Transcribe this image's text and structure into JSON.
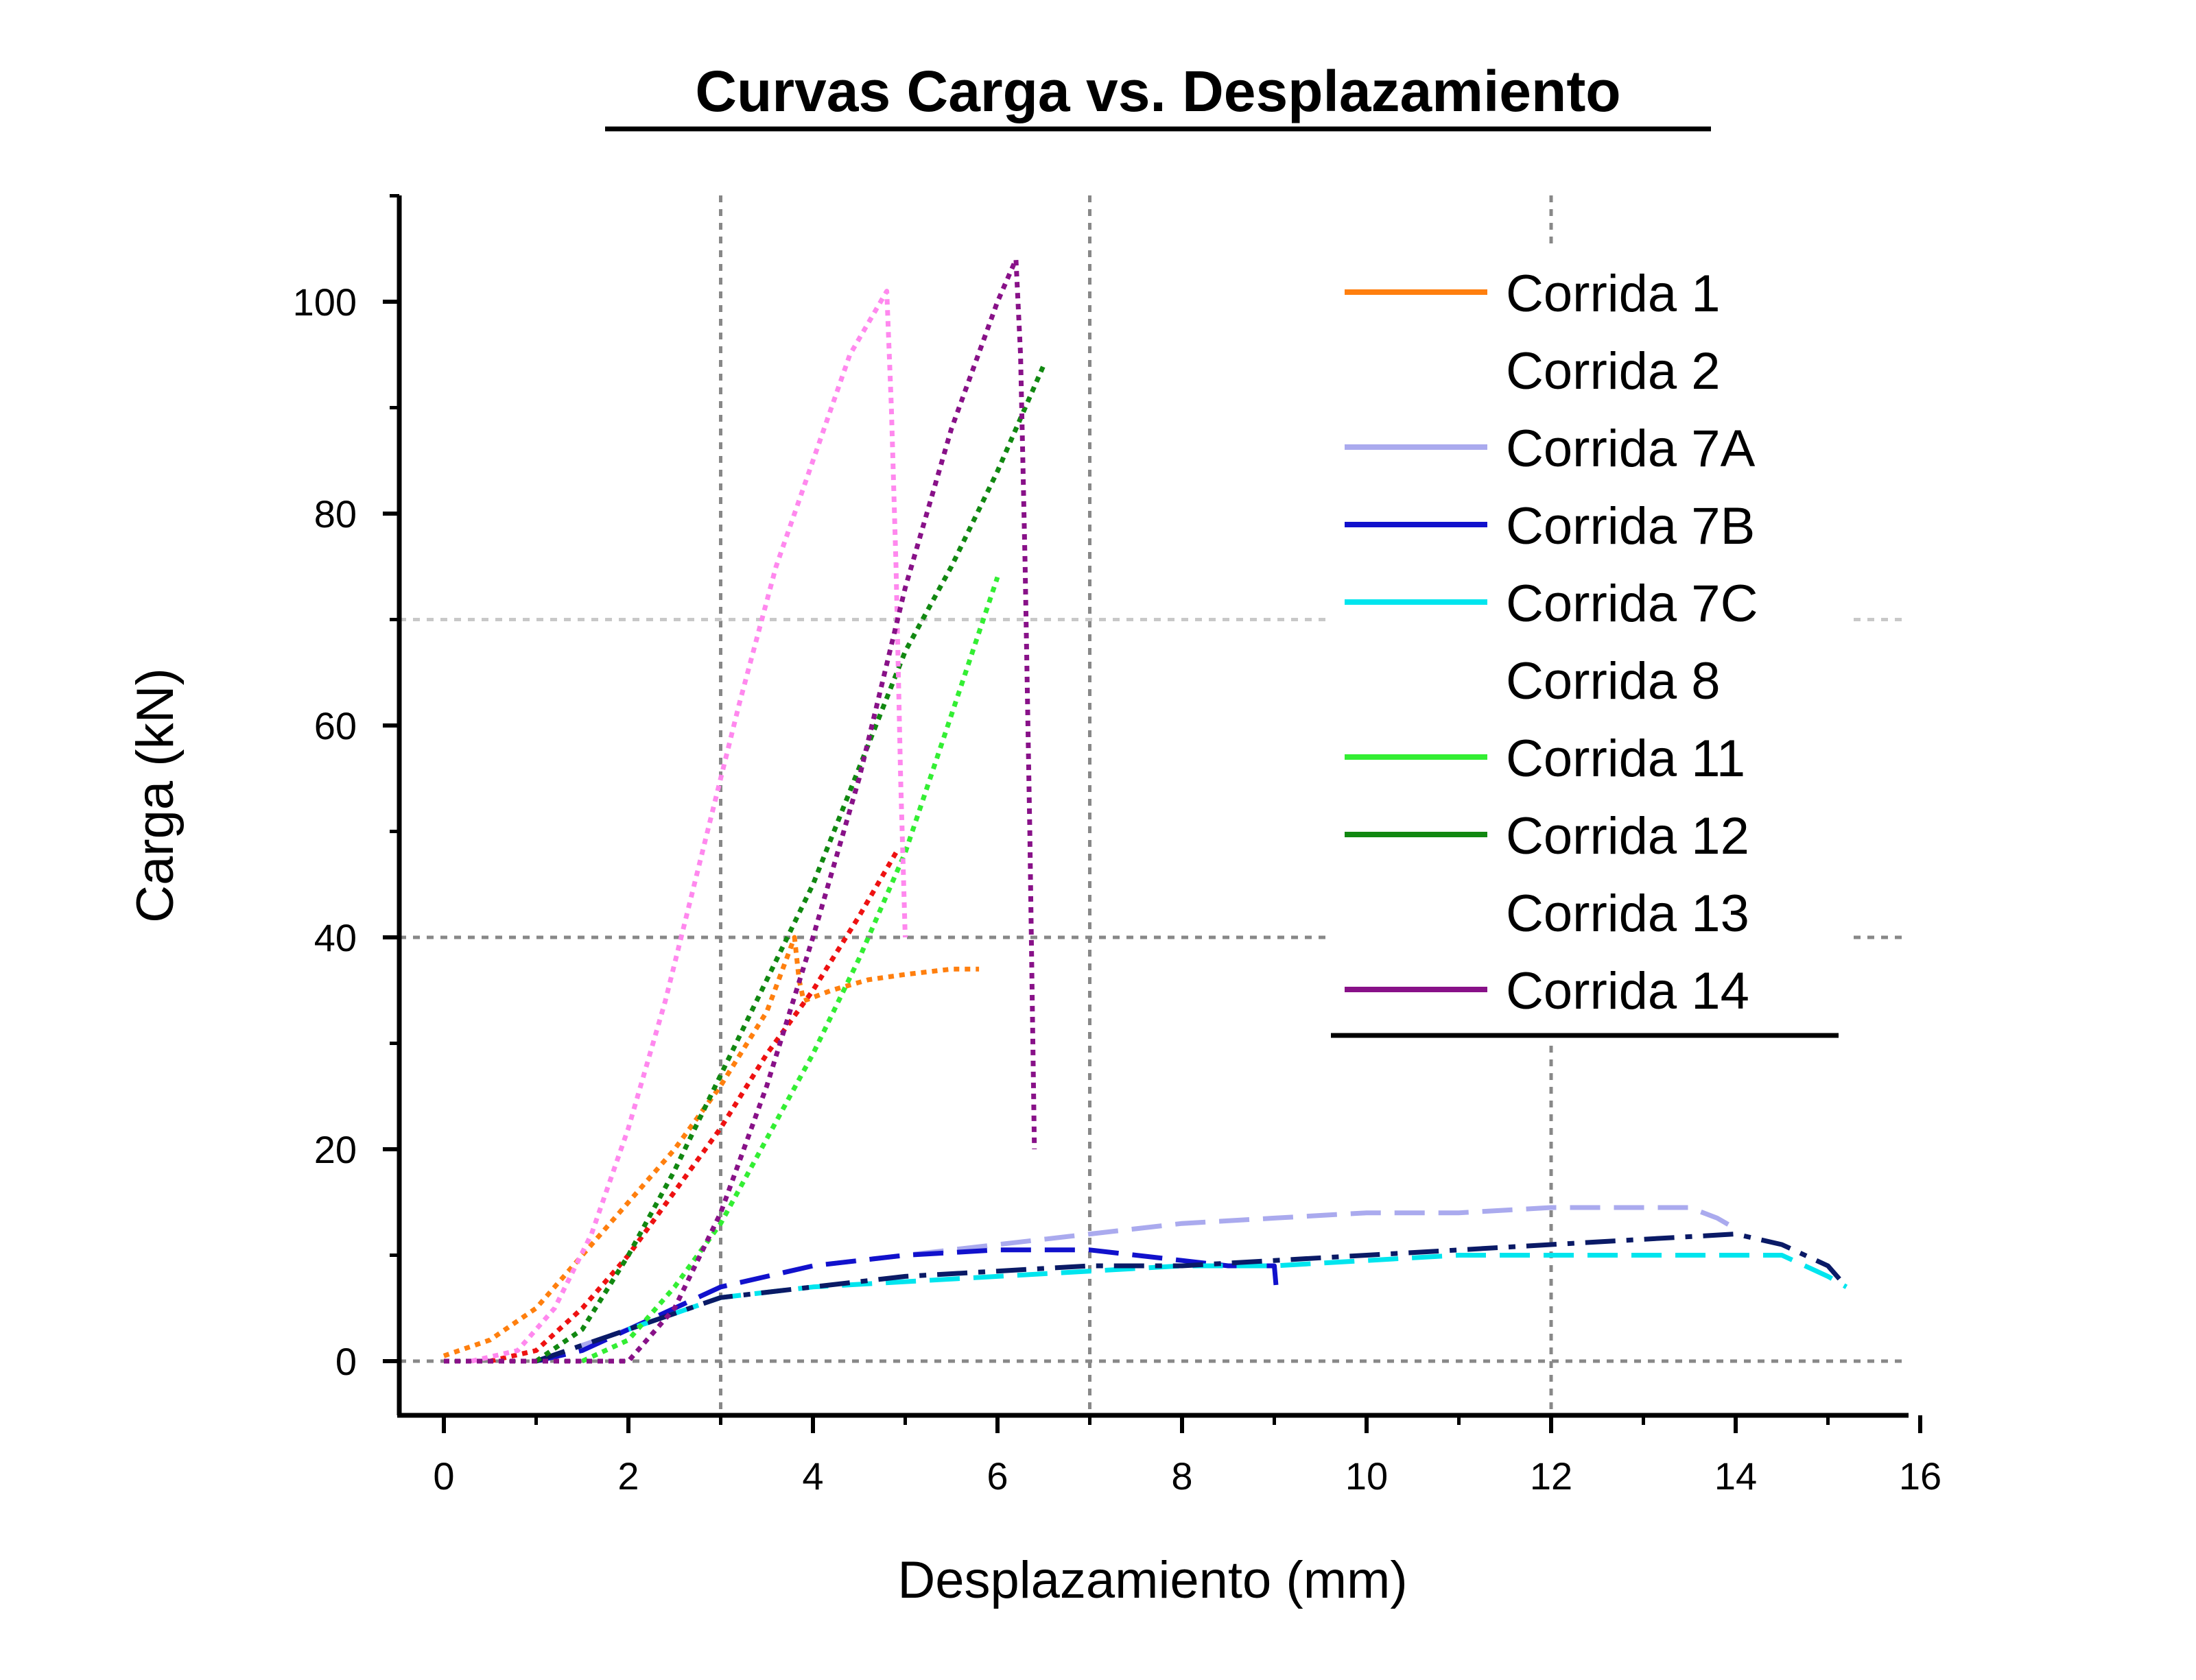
{
  "chart_data": {
    "type": "line",
    "title": "Curvas Carga vs. Desplazamiento",
    "xlabel": "Desplazamiento (mm)",
    "ylabel": "Carga (kN)",
    "xlim": [
      -0.5,
      16
    ],
    "ylim": [
      -5,
      110
    ],
    "xticks": [
      0,
      2,
      4,
      6,
      8,
      10,
      12,
      14,
      16
    ],
    "xtick_labels": [
      "0",
      "2",
      "4",
      "6",
      "8",
      "10",
      "12",
      "14",
      "16"
    ],
    "yticks": [
      0,
      20,
      40,
      60,
      80,
      100
    ],
    "ytick_labels": [
      "0",
      "20",
      "40",
      "60",
      "80",
      "100"
    ],
    "reference_lines": {
      "x": [
        3,
        7,
        12
      ],
      "y": [
        0,
        40,
        70
      ]
    },
    "legend_position": "top-right",
    "series": [
      {
        "name": "Corrida 1",
        "color": "#ff7f0e",
        "dash": "dotted",
        "x": [
          0,
          0.5,
          1,
          1.5,
          2,
          2.5,
          3,
          3.5,
          3.8,
          3.85,
          3.9,
          4.2,
          4.6,
          5,
          5.5,
          5.8
        ],
        "y": [
          0.5,
          2,
          5,
          10,
          15,
          20,
          26,
          33,
          40,
          36,
          34,
          35,
          36,
          36.5,
          37,
          37
        ]
      },
      {
        "name": "Corrida 2",
        "color": "#ee1111",
        "dash": "dotted",
        "x": [
          0.5,
          1,
          1.5,
          2,
          2.5,
          3,
          3.5,
          4,
          4.5,
          4.9
        ],
        "y": [
          0,
          1,
          5,
          10,
          16,
          22,
          29,
          35,
          42,
          48
        ]
      },
      {
        "name": "Corrida 7A",
        "color": "#aaaaee",
        "dash": "dashed",
        "x": [
          1,
          2,
          3,
          4,
          5,
          6,
          7,
          8,
          9,
          10,
          11,
          12,
          13,
          13.5,
          13.8,
          14
        ],
        "y": [
          0,
          3,
          7,
          9,
          10,
          11,
          12,
          13,
          13.5,
          14,
          14,
          14.5,
          14.5,
          14.5,
          13.5,
          12.5
        ]
      },
      {
        "name": "Corrida 7B",
        "color": "#1111cc",
        "dash": "dashed",
        "x": [
          1,
          1.5,
          2,
          2.5,
          3,
          4,
          5,
          6,
          7,
          7.5,
          8,
          8.5,
          9,
          9.02
        ],
        "y": [
          0,
          1,
          3,
          5,
          7,
          9,
          10,
          10.5,
          10.5,
          10,
          9.5,
          9,
          9,
          7
        ]
      },
      {
        "name": "Corrida 7C",
        "color": "#00e5ee",
        "dash": "dashed",
        "x": [
          2,
          3,
          4,
          5,
          6,
          7,
          8,
          9,
          10,
          11,
          12,
          13,
          14,
          14.5,
          15,
          15.2
        ],
        "y": [
          3,
          6,
          7,
          7.5,
          8,
          8.5,
          9,
          9,
          9.5,
          10,
          10,
          10,
          10,
          10,
          8,
          7
        ]
      },
      {
        "name": "Corrida 8",
        "color": "#0a1a66",
        "dash": "dashdot",
        "x": [
          1,
          2,
          3,
          4,
          5,
          6,
          7,
          8,
          9,
          10,
          11,
          12,
          13,
          14,
          14.5,
          15,
          15.2
        ],
        "y": [
          0,
          3,
          6,
          7,
          8,
          8.5,
          9,
          9,
          9.5,
          10,
          10.5,
          11,
          11.5,
          12,
          11,
          9,
          7
        ]
      },
      {
        "name": "Corrida 11",
        "color": "#33ee33",
        "dash": "dotted",
        "x": [
          1.5,
          2,
          2.5,
          3,
          3.5,
          4,
          4.5,
          5,
          5.5,
          6
        ],
        "y": [
          0,
          2,
          7,
          13,
          21,
          29,
          38,
          48,
          61,
          74
        ]
      },
      {
        "name": "Corrida 12",
        "color": "#118811",
        "dash": "dotted",
        "x": [
          1,
          1.5,
          2,
          2.5,
          3,
          3.5,
          4,
          4.5,
          5,
          5.5,
          6,
          6.5
        ],
        "y": [
          0,
          3,
          10,
          18,
          27,
          36,
          45,
          56,
          67,
          75,
          84,
          94
        ]
      },
      {
        "name": "Corrida 13",
        "color": "#ff88ee",
        "dash": "dotted",
        "x": [
          0.3,
          0.8,
          1.2,
          1.6,
          2,
          2.4,
          2.8,
          3.2,
          3.6,
          4,
          4.4,
          4.8,
          4.85,
          4.9,
          4.95,
          5
        ],
        "y": [
          0,
          1,
          5,
          12,
          22,
          34,
          48,
          62,
          75,
          85,
          95,
          101,
          90,
          75,
          55,
          40
        ]
      },
      {
        "name": "Corrida 14",
        "color": "#881188",
        "dash": "dotted",
        "x": [
          0,
          1,
          2,
          2.5,
          3,
          3.5,
          4,
          4.5,
          5,
          5.5,
          6,
          6.2,
          6.25,
          6.3,
          6.35,
          6.4
        ],
        "y": [
          0,
          0,
          0,
          5,
          14,
          26,
          40,
          55,
          73,
          88,
          100,
          104,
          95,
          75,
          50,
          20
        ]
      }
    ]
  }
}
